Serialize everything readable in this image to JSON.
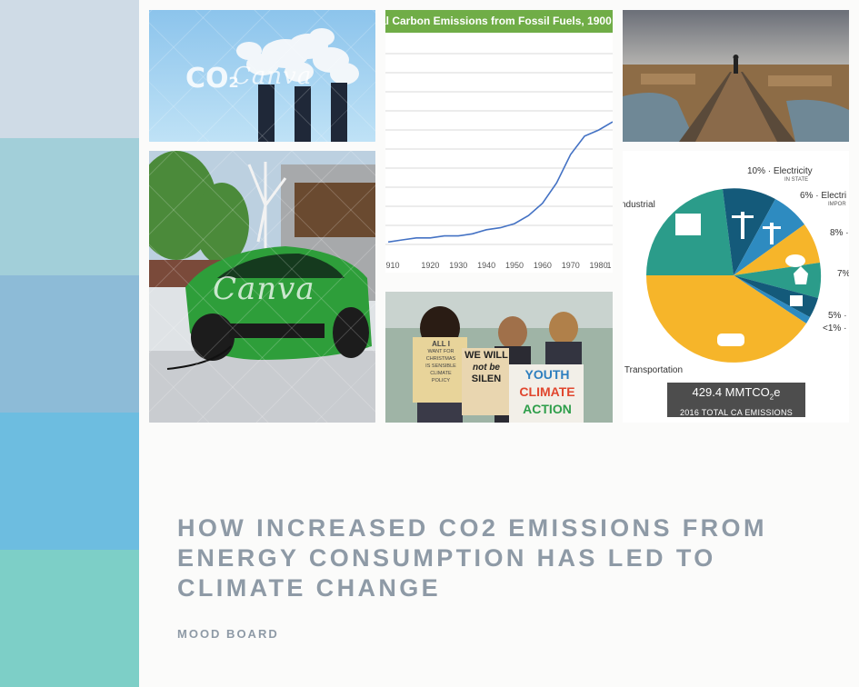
{
  "swatches": [
    "#cfdbe6",
    "#a2cfd9",
    "#8dbbd7",
    "#6dbde0",
    "#7dcfc7"
  ],
  "images": {
    "smokestacks": {
      "text": "CO",
      "sub": "2",
      "watermark": "Canva"
    },
    "ev_car": {
      "watermark": "Canva"
    }
  },
  "chart": {
    "title": "al Carbon Emissions from Fossil Fuels, 1900",
    "x_ticks": [
      "910",
      "1920",
      "1930",
      "1940",
      "1950",
      "1960",
      "1970",
      "1980",
      "1"
    ]
  },
  "chart_data": {
    "type": "line",
    "title": "al Carbon Emissions from Fossil Fuels, 1900",
    "x": [
      1905,
      1910,
      1915,
      1920,
      1925,
      1930,
      1935,
      1940,
      1945,
      1950,
      1955,
      1960,
      1965,
      1970,
      1975,
      1980,
      1985
    ],
    "series": [
      {
        "values": [
          3,
          4,
          5,
          5,
          6,
          6,
          7,
          9,
          10,
          12,
          16,
          22,
          32,
          46,
          55,
          58,
          62
        ]
      }
    ],
    "ylim": [
      0,
      100
    ]
  },
  "protest": {
    "sign1": [
      "ALL I",
      "WANT FOR",
      "CHRISTMAS",
      "IS SENSIBLE CLIMATE",
      "POLICY"
    ],
    "sign2": [
      "WE WILL",
      "not be",
      "SILEN"
    ],
    "sign3": [
      "YOUTH",
      "CLIMATE",
      "ACTION"
    ]
  },
  "pie": {
    "labels": {
      "electricity_in": "10% · Electricity",
      "electricity_in_sub": "IN STATE",
      "electricity_imp": "6% · Electri",
      "electricity_imp_sub": "IMPOR",
      "industrial": "ndustrial",
      "ag": "8% ·",
      "res": "7%",
      "comm": "5% ·",
      "other": "<1% ·",
      "transport": "· Transportation"
    },
    "total": "429.4 MMTCO",
    "total_sub2": "2",
    "total_unit": "e",
    "total_caption": "2016 TOTAL CA EMISSIONS",
    "colors": {
      "industrial": "#2b9c8a",
      "elec_in": "#145a7a",
      "elec_imp": "#2e8bc0",
      "ag": "#f6b52a",
      "res": "#2b9c8a",
      "comm": "#145a7a",
      "transport": "#f6b52a"
    }
  },
  "title": "HOW INCREASED CO2 EMISSIONS FROM ENERGY CONSUMPTION HAS LED TO CLIMATE CHANGE",
  "subtitle": "MOOD BOARD"
}
